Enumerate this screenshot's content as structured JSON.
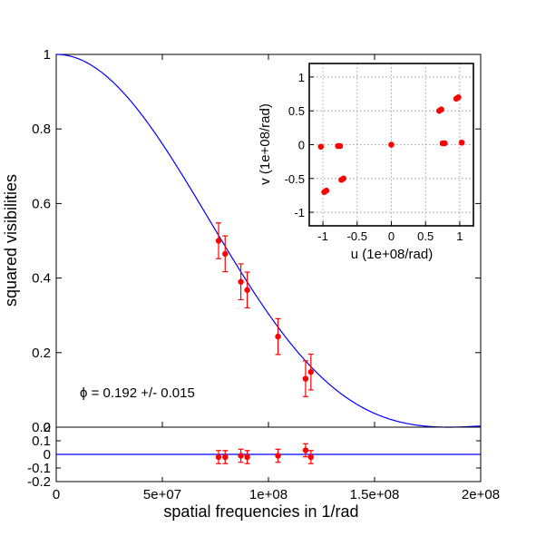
{
  "chart_data": [
    {
      "panel": "main",
      "type": "scatter",
      "xlabel": "spatial frequencies in 1/rad",
      "ylabel": "squared visibilities",
      "xlim": [
        0,
        200000000
      ],
      "ylim": [
        0,
        1
      ],
      "xticks": [
        {
          "value": 0,
          "label": "0"
        },
        {
          "value": 50000000,
          "label": "5e+07"
        },
        {
          "value": 100000000,
          "label": "1e+08"
        },
        {
          "value": 150000000,
          "label": "1.5e+08"
        },
        {
          "value": 200000000,
          "label": "2e+08"
        }
      ],
      "yticks": [
        {
          "value": 0,
          "label": "0"
        },
        {
          "value": 0.2,
          "label": "0.2"
        },
        {
          "value": 0.4,
          "label": "0.4"
        },
        {
          "value": 0.6,
          "label": "0.6"
        },
        {
          "value": 0.8,
          "label": "0.8"
        },
        {
          "value": 1,
          "label": "1"
        }
      ],
      "annotation": "ϕ = 0.192 +/- 0.015",
      "model_curve": {
        "color": "#0000ff",
        "form": "uniform disk visibility squared",
        "diameter": 0.192
      },
      "points": [
        {
          "x": 76500000,
          "y": 0.5,
          "err": 0.048
        },
        {
          "x": 79600000,
          "y": 0.465,
          "err": 0.048
        },
        {
          "x": 87000000,
          "y": 0.39,
          "err": 0.048
        },
        {
          "x": 90000000,
          "y": 0.368,
          "err": 0.048
        },
        {
          "x": 104500000,
          "y": 0.243,
          "err": 0.048
        },
        {
          "x": 117500000,
          "y": 0.13,
          "err": 0.048
        },
        {
          "x": 120000000,
          "y": 0.148,
          "err": 0.048
        }
      ],
      "point_color": "#ff0000"
    },
    {
      "panel": "residuals",
      "type": "scatter",
      "xlim": [
        0,
        200000000
      ],
      "ylim": [
        -0.2,
        0.2
      ],
      "yticks": [
        {
          "value": -0.2,
          "label": "-0.2"
        },
        {
          "value": -0.1,
          "label": "-0.1"
        },
        {
          "value": 0,
          "label": "0"
        },
        {
          "value": 0.1,
          "label": "0.1"
        },
        {
          "value": 0.2,
          "label": "0.2"
        }
      ],
      "points": [
        {
          "x": 76500000,
          "y": -0.02,
          "err": 0.048
        },
        {
          "x": 79600000,
          "y": -0.02,
          "err": 0.048
        },
        {
          "x": 87000000,
          "y": -0.01,
          "err": 0.048
        },
        {
          "x": 90000000,
          "y": -0.02,
          "err": 0.048
        },
        {
          "x": 104500000,
          "y": -0.01,
          "err": 0.048
        },
        {
          "x": 117500000,
          "y": 0.03,
          "err": 0.048
        },
        {
          "x": 120000000,
          "y": -0.02,
          "err": 0.048
        }
      ],
      "zero_line_color": "#0000ff",
      "point_color": "#ff0000"
    },
    {
      "panel": "inset",
      "type": "scatter",
      "xlabel": "u (1e+08/rad)",
      "ylabel": "v (1e+08/rad)",
      "xlim": [
        -1.2,
        1.2
      ],
      "ylim": [
        -1.2,
        1.2
      ],
      "grid": true,
      "xticks": [
        {
          "value": -1,
          "label": "-1"
        },
        {
          "value": -0.5,
          "label": "-0.5"
        },
        {
          "value": 0,
          "label": "0"
        },
        {
          "value": 0.5,
          "label": "0.5"
        },
        {
          "value": 1,
          "label": "1"
        }
      ],
      "yticks": [
        {
          "value": -1,
          "label": "-1"
        },
        {
          "value": -0.5,
          "label": "-0.5"
        },
        {
          "value": 0,
          "label": "0"
        },
        {
          "value": 0.5,
          "label": "0.5"
        },
        {
          "value": 1,
          "label": "1"
        }
      ],
      "points": [
        {
          "u": -1.03,
          "v": -0.03
        },
        {
          "u": -0.78,
          "v": -0.02
        },
        {
          "u": -0.75,
          "v": -0.02
        },
        {
          "u": -0.98,
          "v": -0.7
        },
        {
          "u": -0.95,
          "v": -0.68
        },
        {
          "u": -0.73,
          "v": -0.52
        },
        {
          "u": -0.7,
          "v": -0.5
        },
        {
          "u": 0.0,
          "v": 0.0
        },
        {
          "u": 0.7,
          "v": 0.5
        },
        {
          "u": 0.73,
          "v": 0.52
        },
        {
          "u": 0.95,
          "v": 0.68
        },
        {
          "u": 0.98,
          "v": 0.7
        },
        {
          "u": 0.75,
          "v": 0.02
        },
        {
          "u": 0.78,
          "v": 0.02
        },
        {
          "u": 1.03,
          "v": 0.03
        }
      ],
      "point_color": "#ff0000"
    }
  ]
}
